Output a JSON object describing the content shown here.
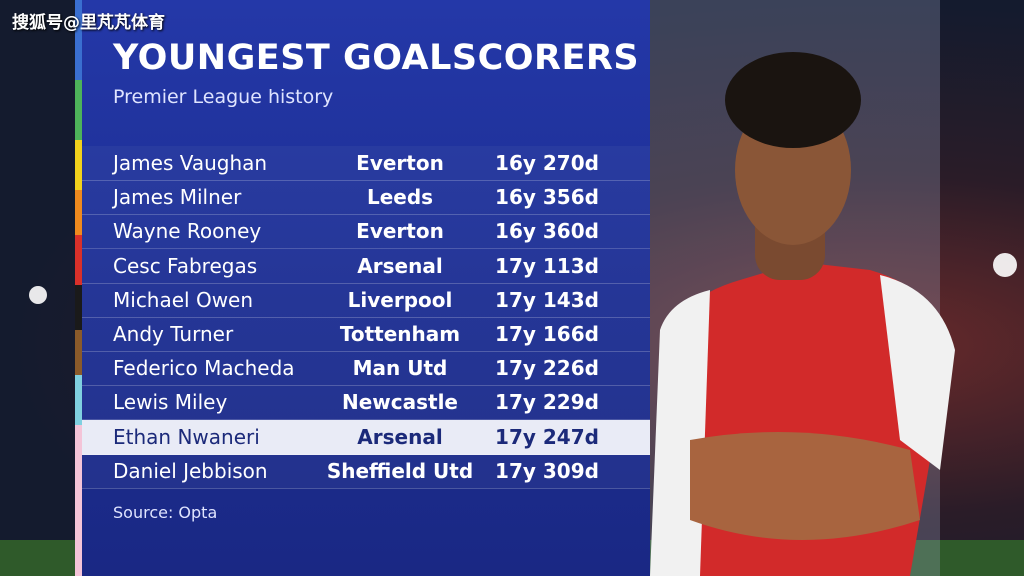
{
  "watermark": "搜狐号@里芃芃体育",
  "header": {
    "title": "YOUNGEST GOALSCORERS",
    "subtitle": "Premier League history"
  },
  "table": {
    "highlighted_row": 8,
    "rows": [
      [
        "James Vaughan",
        "Everton",
        "16y 270d"
      ],
      [
        "James Milner",
        "Leeds",
        "16y 356d"
      ],
      [
        "Wayne Rooney",
        "Everton",
        "16y 360d"
      ],
      [
        "Cesc Fabregas",
        "Arsenal",
        "17y 113d"
      ],
      [
        "Michael Owen",
        "Liverpool",
        "17y 143d"
      ],
      [
        "Andy Turner",
        "Tottenham",
        "17y 166d"
      ],
      [
        "Federico Macheda",
        "Man Utd",
        "17y 226d"
      ],
      [
        "Lewis Miley",
        "Newcastle",
        "17y 229d"
      ],
      [
        "Ethan Nwaneri",
        "Arsenal",
        "17y 247d"
      ],
      [
        "Daniel Jebbison",
        "Sheffield Utd",
        "17y 309d"
      ]
    ]
  },
  "footer": {
    "source": "Source: Opta"
  }
}
